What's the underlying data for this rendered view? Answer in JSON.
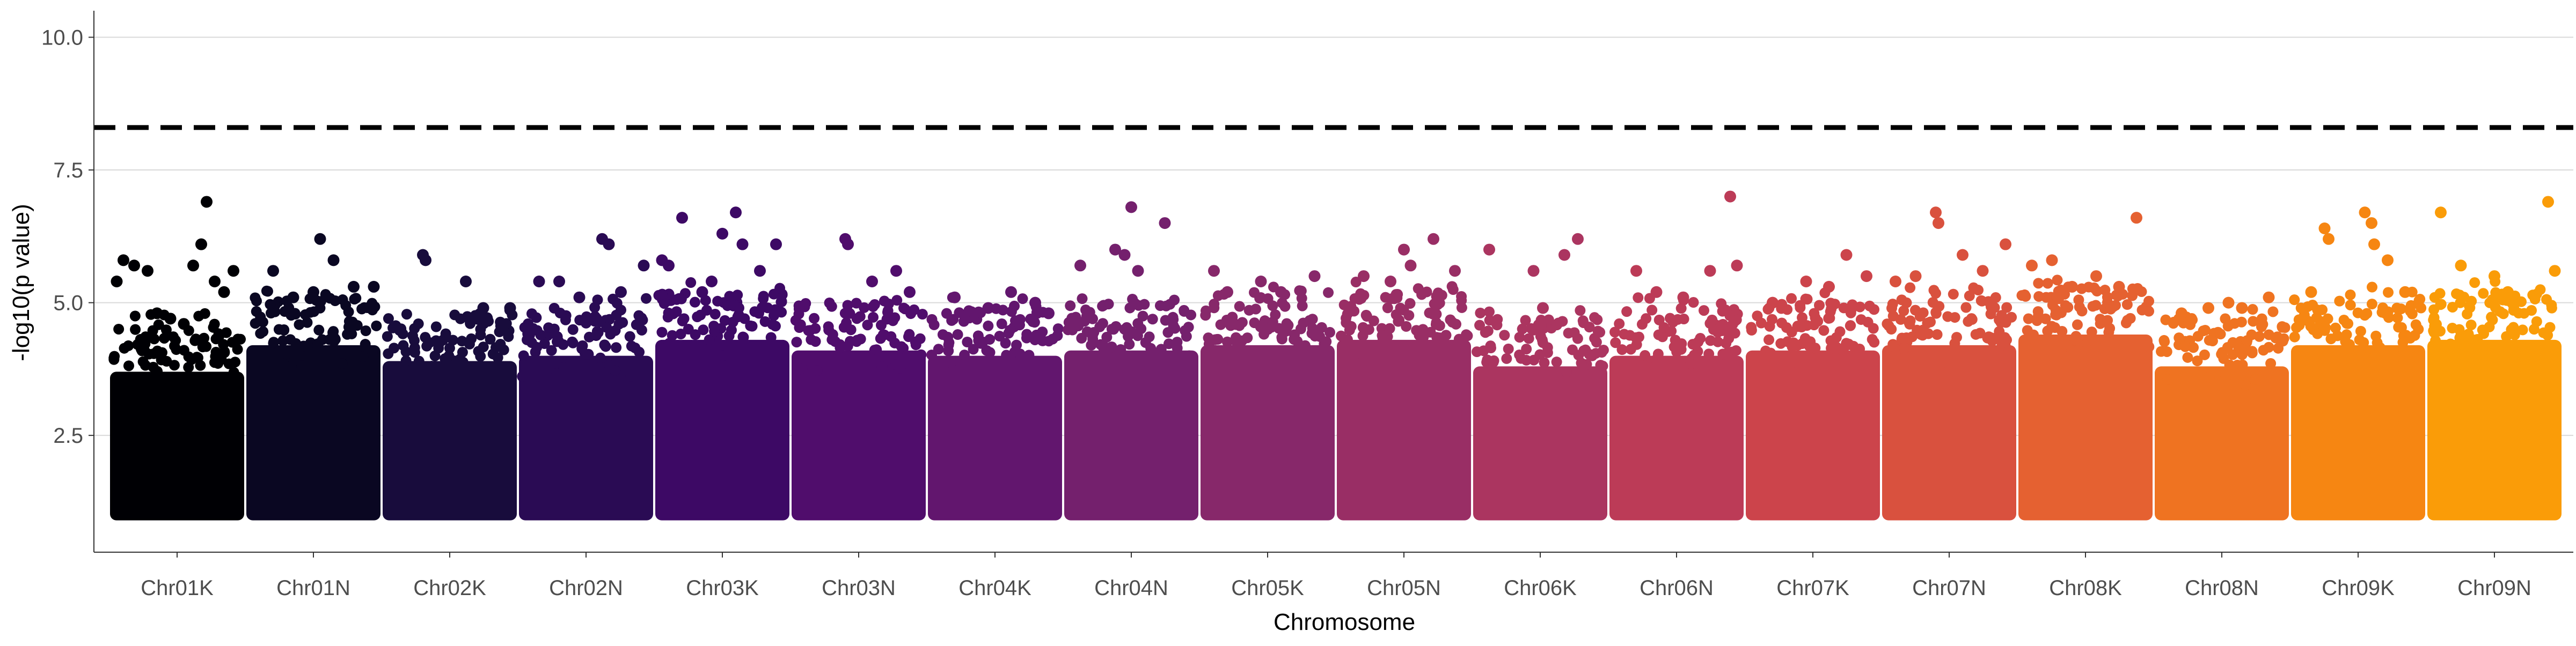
{
  "chart_data": {
    "type": "scatter",
    "title": "",
    "xlabel": "Chromosome",
    "ylabel": "-log10(p value)",
    "categories": [
      "Chr01K",
      "Chr01N",
      "Chr02K",
      "Chr02N",
      "Chr03K",
      "Chr03N",
      "Chr04K",
      "Chr04N",
      "Chr05K",
      "Chr05N",
      "Chr06K",
      "Chr06N",
      "Chr07K",
      "Chr07N",
      "Chr08K",
      "Chr08N",
      "Chr09K",
      "Chr09N"
    ],
    "ylim": [
      0.3,
      10.5
    ],
    "yticks": [
      2.5,
      5.0,
      7.5,
      10.0
    ],
    "ytick_labels": [
      "2.5",
      "5.0",
      "7.5",
      "10.0"
    ],
    "grid": "horizontal major",
    "legend": "none",
    "threshold": 8.3,
    "threshold_style": "dashed black",
    "y_min_value": 1.0,
    "colors": [
      "#000004",
      "#0a0722",
      "#180c3c",
      "#2a0b54",
      "#3d0965",
      "#500d6c",
      "#62166e",
      "#74206d",
      "#87286a",
      "#992e65",
      "#ab3560",
      "#bc3b57",
      "#cc444b",
      "#d9513e",
      "#e56131",
      "#ef7321",
      "#f68612",
      "#fa9c08"
    ],
    "series": [
      {
        "name": "Chr01K",
        "bulk_top": 4.3,
        "outliers": [
          [
            0.05,
            5.4
          ],
          [
            0.1,
            5.8
          ],
          [
            0.18,
            5.7
          ],
          [
            0.28,
            5.6
          ],
          [
            0.35,
            4.8
          ],
          [
            0.55,
            4.6
          ],
          [
            0.62,
            5.7
          ],
          [
            0.68,
            6.1
          ],
          [
            0.72,
            6.9
          ],
          [
            0.78,
            5.4
          ],
          [
            0.85,
            5.2
          ],
          [
            0.92,
            5.6
          ],
          [
            0.45,
            4.7
          ]
        ]
      },
      {
        "name": "Chr01N",
        "bulk_top": 4.8,
        "outliers": [
          [
            0.2,
            5.6
          ],
          [
            0.5,
            5.2
          ],
          [
            0.55,
            6.2
          ],
          [
            0.65,
            5.8
          ],
          [
            0.8,
            5.3
          ],
          [
            0.95,
            5.3
          ],
          [
            0.35,
            5.1
          ]
        ]
      },
      {
        "name": "Chr02K",
        "bulk_top": 4.5,
        "outliers": [
          [
            0.3,
            5.9
          ],
          [
            0.32,
            5.8
          ],
          [
            0.62,
            5.4
          ],
          [
            0.75,
            4.9
          ],
          [
            0.95,
            4.9
          ]
        ]
      },
      {
        "name": "Chr02N",
        "bulk_top": 4.6,
        "outliers": [
          [
            0.15,
            5.4
          ],
          [
            0.3,
            5.4
          ],
          [
            0.62,
            6.2
          ],
          [
            0.67,
            6.1
          ],
          [
            0.76,
            5.2
          ],
          [
            0.93,
            5.7
          ],
          [
            0.45,
            5.1
          ]
        ]
      },
      {
        "name": "Chr03K",
        "bulk_top": 4.9,
        "outliers": [
          [
            0.05,
            5.8
          ],
          [
            0.1,
            5.7
          ],
          [
            0.2,
            6.6
          ],
          [
            0.5,
            6.3
          ],
          [
            0.6,
            6.7
          ],
          [
            0.65,
            6.1
          ],
          [
            0.78,
            5.6
          ],
          [
            0.9,
            6.1
          ],
          [
            0.42,
            5.4
          ],
          [
            0.35,
            5.2
          ]
        ]
      },
      {
        "name": "Chr03N",
        "bulk_top": 4.7,
        "outliers": [
          [
            0.4,
            6.2
          ],
          [
            0.42,
            6.1
          ],
          [
            0.6,
            5.4
          ],
          [
            0.78,
            5.6
          ],
          [
            0.88,
            5.2
          ]
        ]
      },
      {
        "name": "Chr04K",
        "bulk_top": 4.6,
        "outliers": [
          [
            0.2,
            5.1
          ],
          [
            0.45,
            4.9
          ],
          [
            0.62,
            5.2
          ],
          [
            0.8,
            5.0
          ],
          [
            0.9,
            4.8
          ]
        ]
      },
      {
        "name": "Chr04N",
        "bulk_top": 4.7,
        "outliers": [
          [
            0.12,
            5.7
          ],
          [
            0.38,
            6.0
          ],
          [
            0.5,
            6.8
          ],
          [
            0.55,
            5.6
          ],
          [
            0.75,
            6.5
          ],
          [
            0.45,
            5.9
          ]
        ]
      },
      {
        "name": "Chr05K",
        "bulk_top": 4.8,
        "outliers": [
          [
            0.1,
            5.6
          ],
          [
            0.2,
            5.2
          ],
          [
            0.45,
            5.4
          ],
          [
            0.6,
            5.2
          ],
          [
            0.85,
            5.5
          ]
        ]
      },
      {
        "name": "Chr05N",
        "bulk_top": 4.9,
        "outliers": [
          [
            0.2,
            5.5
          ],
          [
            0.4,
            5.4
          ],
          [
            0.5,
            6.0
          ],
          [
            0.55,
            5.7
          ],
          [
            0.72,
            6.2
          ],
          [
            0.88,
            5.6
          ]
        ]
      },
      {
        "name": "Chr06K",
        "bulk_top": 4.4,
        "outliers": [
          [
            0.12,
            6.0
          ],
          [
            0.45,
            5.6
          ],
          [
            0.68,
            5.9
          ],
          [
            0.78,
            6.2
          ],
          [
            0.52,
            4.9
          ]
        ]
      },
      {
        "name": "Chr06N",
        "bulk_top": 4.6,
        "outliers": [
          [
            0.2,
            5.6
          ],
          [
            0.35,
            5.2
          ],
          [
            0.55,
            5.1
          ],
          [
            0.75,
            5.6
          ],
          [
            0.9,
            7.0
          ],
          [
            0.95,
            5.7
          ]
        ]
      },
      {
        "name": "Chr07K",
        "bulk_top": 4.7,
        "outliers": [
          [
            0.2,
            5.0
          ],
          [
            0.45,
            5.4
          ],
          [
            0.62,
            5.3
          ],
          [
            0.75,
            5.9
          ],
          [
            0.9,
            5.5
          ]
        ]
      },
      {
        "name": "Chr07N",
        "bulk_top": 4.8,
        "outliers": [
          [
            0.1,
            5.4
          ],
          [
            0.25,
            5.5
          ],
          [
            0.4,
            6.7
          ],
          [
            0.42,
            6.5
          ],
          [
            0.6,
            5.9
          ],
          [
            0.75,
            5.6
          ],
          [
            0.92,
            6.1
          ]
        ]
      },
      {
        "name": "Chr08K",
        "bulk_top": 5.0,
        "outliers": [
          [
            0.1,
            5.7
          ],
          [
            0.25,
            5.8
          ],
          [
            0.4,
            5.3
          ],
          [
            0.58,
            5.5
          ],
          [
            0.75,
            5.3
          ],
          [
            0.88,
            6.6
          ]
        ]
      },
      {
        "name": "Chr08N",
        "bulk_top": 4.4,
        "outliers": [
          [
            0.2,
            4.8
          ],
          [
            0.4,
            4.9
          ],
          [
            0.55,
            5.0
          ],
          [
            0.65,
            4.9
          ],
          [
            0.85,
            5.1
          ]
        ]
      },
      {
        "name": "Chr09K",
        "bulk_top": 4.8,
        "outliers": [
          [
            0.15,
            5.2
          ],
          [
            0.25,
            6.4
          ],
          [
            0.28,
            6.2
          ],
          [
            0.55,
            6.7
          ],
          [
            0.6,
            6.5
          ],
          [
            0.62,
            6.1
          ],
          [
            0.85,
            5.2
          ],
          [
            0.72,
            5.8
          ]
        ]
      },
      {
        "name": "Chr09N",
        "bulk_top": 4.9,
        "outliers": [
          [
            0.1,
            6.7
          ],
          [
            0.25,
            5.7
          ],
          [
            0.5,
            5.5
          ],
          [
            0.6,
            5.2
          ],
          [
            0.9,
            6.9
          ],
          [
            0.95,
            5.6
          ]
        ]
      }
    ]
  }
}
